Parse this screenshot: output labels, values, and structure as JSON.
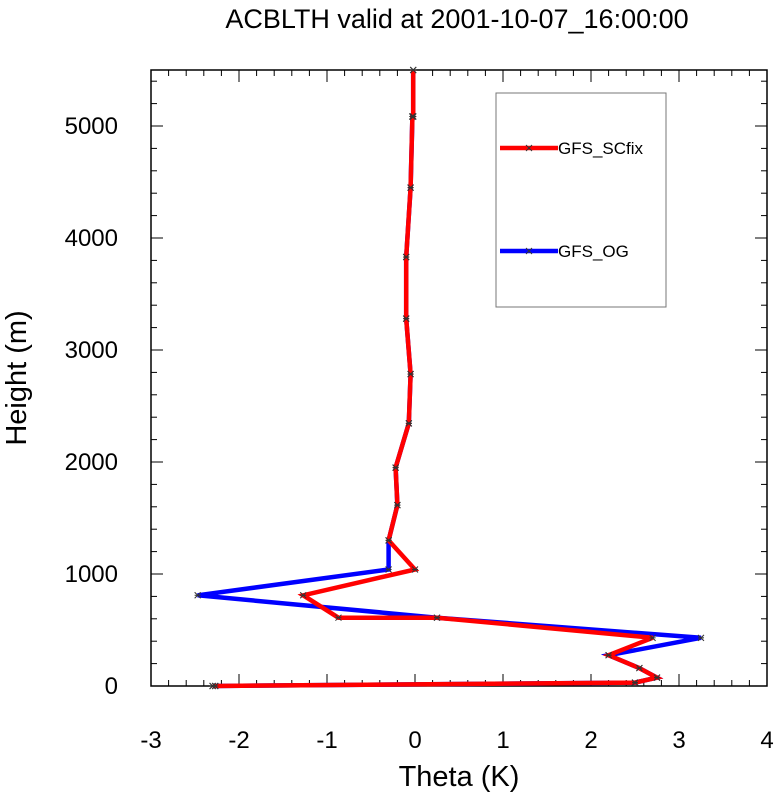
{
  "chart_data": {
    "type": "line",
    "title": "ACBLTH valid at 2001-10-07_16:00:00",
    "xlabel": "Theta (K)",
    "ylabel": "Height (m)",
    "xlim": [
      -3,
      4
    ],
    "ylim": [
      0,
      5500
    ],
    "xticks": [
      -3,
      -2,
      -1,
      0,
      1,
      2,
      3,
      4
    ],
    "yticks": [
      0,
      1000,
      2000,
      3000,
      4000,
      5000
    ],
    "xtick_labels": [
      "-3",
      "-2",
      "-1",
      "0",
      "1",
      "2",
      "3",
      "4"
    ],
    "ytick_labels": [
      "0",
      "1000",
      "2000",
      "3000",
      "4000",
      "5000"
    ],
    "grid": false,
    "legend": "top-right",
    "series": [
      {
        "name": "GFS_SCfix",
        "color": "#ff0000",
        "x": [
          -2.3,
          -2.27,
          2.5,
          2.75,
          2.55,
          2.2,
          2.7,
          0.25,
          -0.87,
          -1.27,
          0.0,
          -0.3,
          -0.2,
          -0.22,
          -0.07,
          -0.05,
          -0.1,
          -0.1,
          -0.05,
          -0.03,
          -0.02,
          -0.02
        ],
        "y": [
          0,
          0,
          30,
          75,
          160,
          275,
          430,
          610,
          610,
          810,
          1040,
          1300,
          1615,
          1950,
          2345,
          2785,
          3280,
          3830,
          4450,
          5085,
          5085,
          5500
        ]
      },
      {
        "name": "GFS_OG",
        "color": "#0000ff",
        "x": [
          -2.3,
          -2.27,
          2.5,
          2.75,
          2.55,
          2.2,
          3.25,
          0.25,
          -2.47,
          -0.3,
          -0.3,
          -0.2,
          -0.22,
          -0.07,
          -0.05,
          -0.1,
          -0.1,
          -0.05,
          -0.03,
          -0.02,
          -0.02
        ],
        "y": [
          0,
          0,
          30,
          75,
          160,
          275,
          430,
          610,
          810,
          1040,
          1300,
          1615,
          1950,
          2345,
          2785,
          3280,
          3830,
          4450,
          5085,
          5085,
          5500
        ]
      }
    ]
  }
}
